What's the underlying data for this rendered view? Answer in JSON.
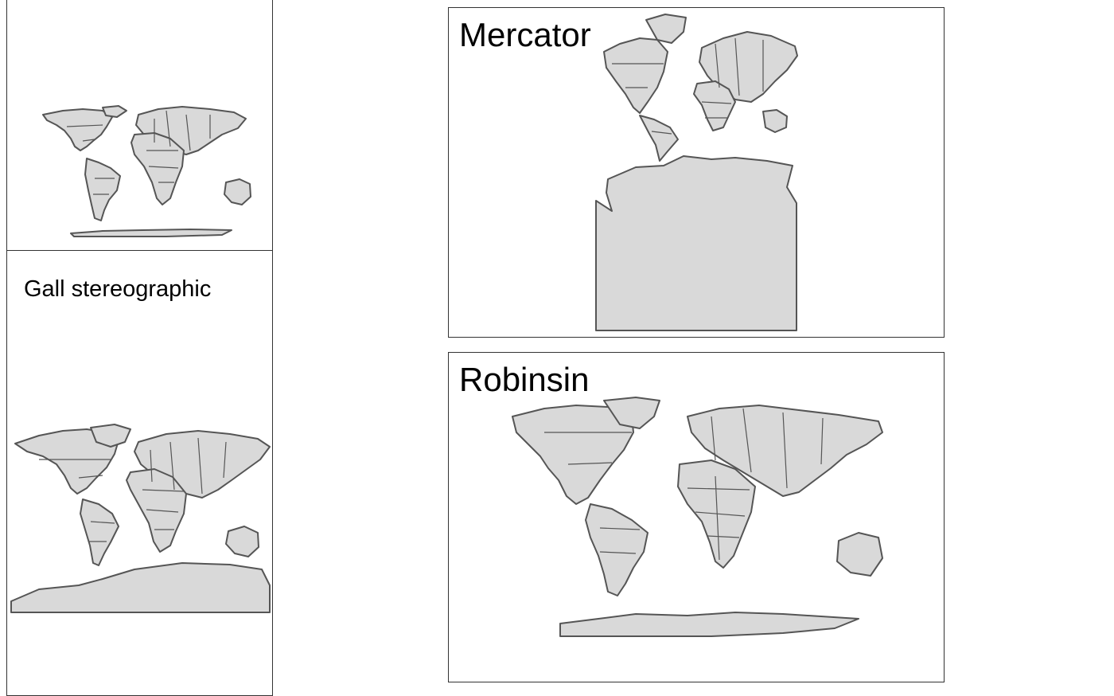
{
  "panels": {
    "top_left": {
      "title": ""
    },
    "gall": {
      "title": "Gall stereographic"
    },
    "mercator": {
      "title": "Mercator"
    },
    "robinson": {
      "title": "Robinsin"
    }
  },
  "colors": {
    "land": "#d9d9d9",
    "outline": "#555555",
    "frame": "#333333",
    "background": "#ffffff"
  }
}
